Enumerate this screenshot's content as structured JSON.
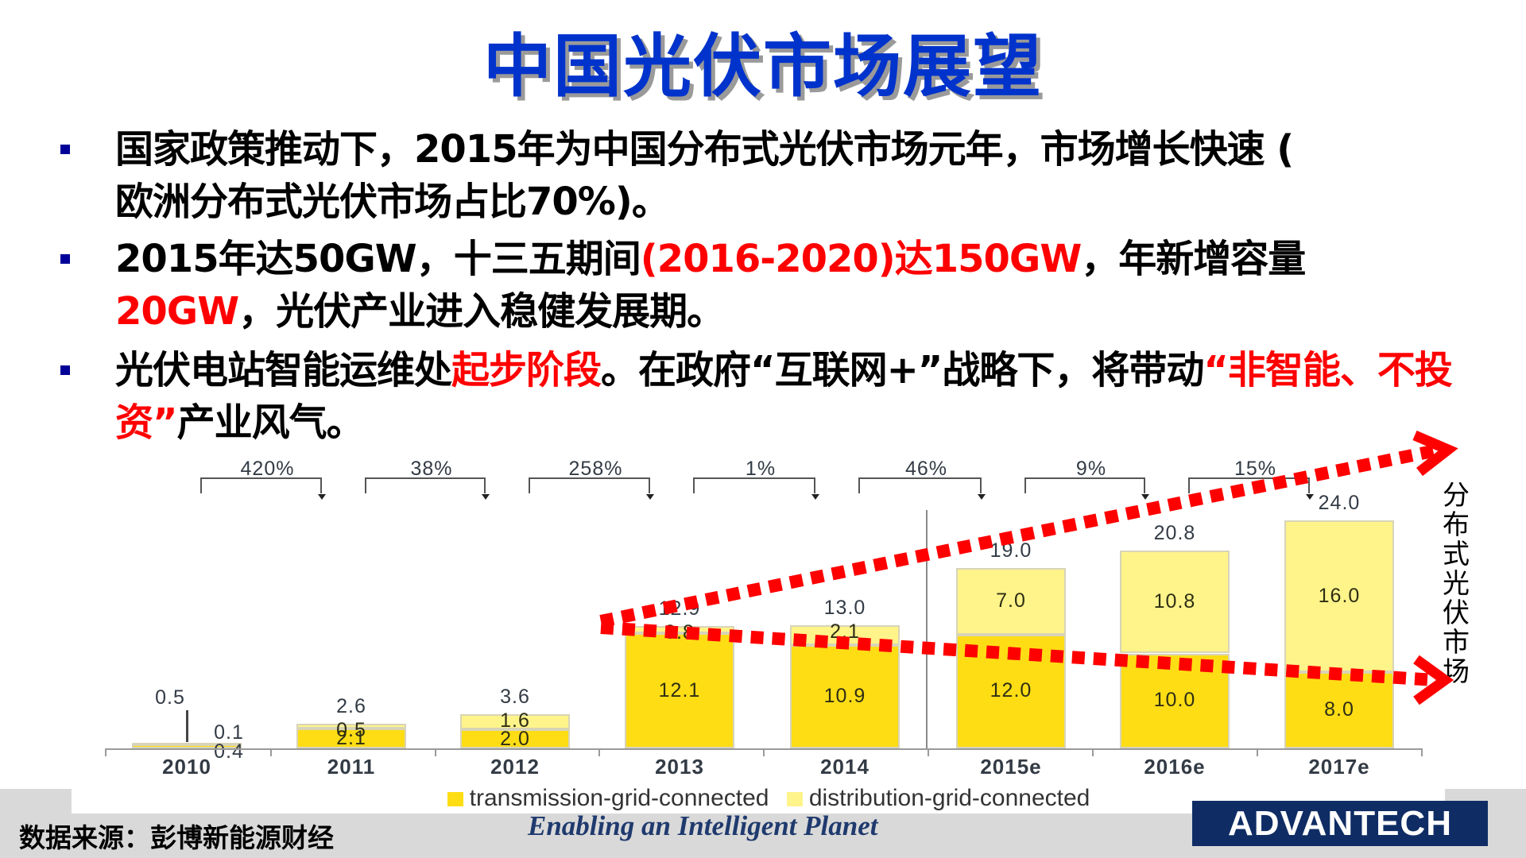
{
  "slide": {
    "title": "中国光伏市场展望",
    "title_color": "#0033CC",
    "bullets": [
      {
        "parts": [
          {
            "text": "国家政策推动下，2015年为中国分布式光伏市场元年，市场增长快速 (",
            "red": false
          },
          {
            "text": "欧洲分布式光伏市场占比70%)。",
            "red": false
          }
        ]
      },
      {
        "parts": [
          {
            "text": "2015年达50GW，十三五期间",
            "red": false
          },
          {
            "text": "(2016-2020)达150GW",
            "red": true
          },
          {
            "text": "，年新增容量",
            "red": false
          },
          {
            "text": "20GW",
            "red": true
          },
          {
            "text": "，光伏产业进入稳健发展期。",
            "red": false
          }
        ]
      },
      {
        "parts": [
          {
            "text": "光伏电站智能运维处",
            "red": false
          },
          {
            "text": "起步阶段",
            "red": true
          },
          {
            "text": "。在政府“互联网+”战略下，将带动",
            "red": false
          },
          {
            "text": "“非智能、不投资”",
            "red": true
          },
          {
            "text": "产业风气。",
            "red": false
          }
        ]
      }
    ],
    "annotation_vertical": "分布式光伏市场",
    "footer": {
      "source": "数据来源：彭博新能源财经",
      "tagline": "Enabling an Intelligent Planet",
      "logo": "ADVANTECH"
    },
    "colors": {
      "accent_red": "#FF0000",
      "bullet_marker": "#000099",
      "transmission": "#FFDD15",
      "distribution": "#FFF48A",
      "footer_bg": "#D9D9D9",
      "logo_bg": "#0F2D64"
    }
  },
  "chart_data": {
    "type": "bar",
    "stacked": true,
    "title": "",
    "xlabel": "",
    "ylabel": "",
    "categories": [
      "2010",
      "2011",
      "2012",
      "2013",
      "2014",
      "2015e",
      "2016e",
      "2017e"
    ],
    "series": [
      {
        "name": "transmission-grid-connected",
        "values": [
          0.4,
          2.1,
          2.0,
          12.1,
          10.9,
          12.0,
          10.0,
          8.0
        ]
      },
      {
        "name": "distribution-grid-connected",
        "values": [
          0.1,
          0.5,
          1.6,
          0.8,
          2.1,
          7.0,
          10.8,
          16.0
        ]
      }
    ],
    "totals": [
      0.5,
      2.6,
      3.6,
      12.9,
      13.0,
      19.0,
      20.8,
      24.0
    ],
    "growth_rates": [
      "420%",
      "38%",
      "258%",
      "1%",
      "46%",
      "9%",
      "15%"
    ],
    "legend": [
      "transmission-grid-connected",
      "distribution-grid-connected"
    ],
    "legend_position": "bottom",
    "grid": false,
    "ylim": [
      0,
      25
    ],
    "annotations": [
      "分布式光伏市场",
      "forecast divider between 2014 and 2015e",
      "red dotted arrow up (distribution growth)",
      "red dotted arrow down (transmission decline)"
    ]
  }
}
